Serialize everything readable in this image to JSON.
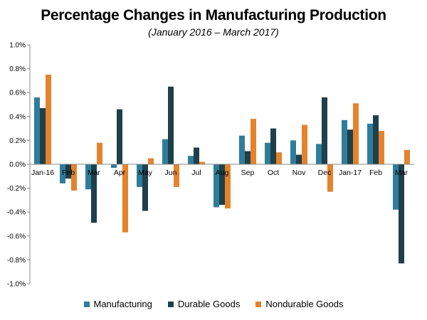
{
  "chart_data": {
    "type": "bar",
    "title": "Percentage Changes in Manufacturing Production",
    "subtitle": "(January 2016 – March 2017)",
    "categories": [
      "Jan-16",
      "Feb",
      "Mar",
      "Apr",
      "May",
      "Jun",
      "Jul",
      "Aug",
      "Sep",
      "Oct",
      "Nov",
      "Dec",
      "Jan-17",
      "Feb",
      "Mar"
    ],
    "series": [
      {
        "name": "Manufacturing",
        "color": "#2e7d9a",
        "values": [
          0.56,
          -0.16,
          -0.21,
          -0.03,
          -0.19,
          0.21,
          0.07,
          -0.36,
          0.24,
          0.18,
          0.2,
          0.17,
          0.37,
          0.34,
          -0.38
        ]
      },
      {
        "name": "Durable Goods",
        "color": "#1f3f4a",
        "values": [
          0.47,
          -0.12,
          -0.49,
          0.46,
          -0.39,
          0.65,
          0.14,
          -0.34,
          0.11,
          0.3,
          0.08,
          0.56,
          0.29,
          0.41,
          -0.83
        ]
      },
      {
        "name": "Nondurable Goods",
        "color": "#e4832c",
        "values": [
          0.75,
          -0.22,
          0.18,
          -0.57,
          0.05,
          -0.19,
          0.02,
          -0.37,
          0.38,
          0.1,
          0.33,
          -0.23,
          0.51,
          0.28,
          0.12
        ]
      }
    ],
    "ylim": [
      -1.0,
      1.0
    ],
    "yticks": [
      1.0,
      0.8,
      0.6,
      0.4,
      0.2,
      0.0,
      -0.2,
      -0.4,
      -0.6,
      -0.8,
      -1.0
    ],
    "ytick_labels": [
      "1.0%",
      "0.8%",
      "0.6%",
      "0.4%",
      "0.2%",
      "0.0%",
      "-0.2%",
      "-0.4%",
      "-0.6%",
      "-0.8%",
      "-1.0%"
    ],
    "xlabel": "",
    "ylabel": "",
    "grid": false,
    "legend_position": "bottom"
  }
}
